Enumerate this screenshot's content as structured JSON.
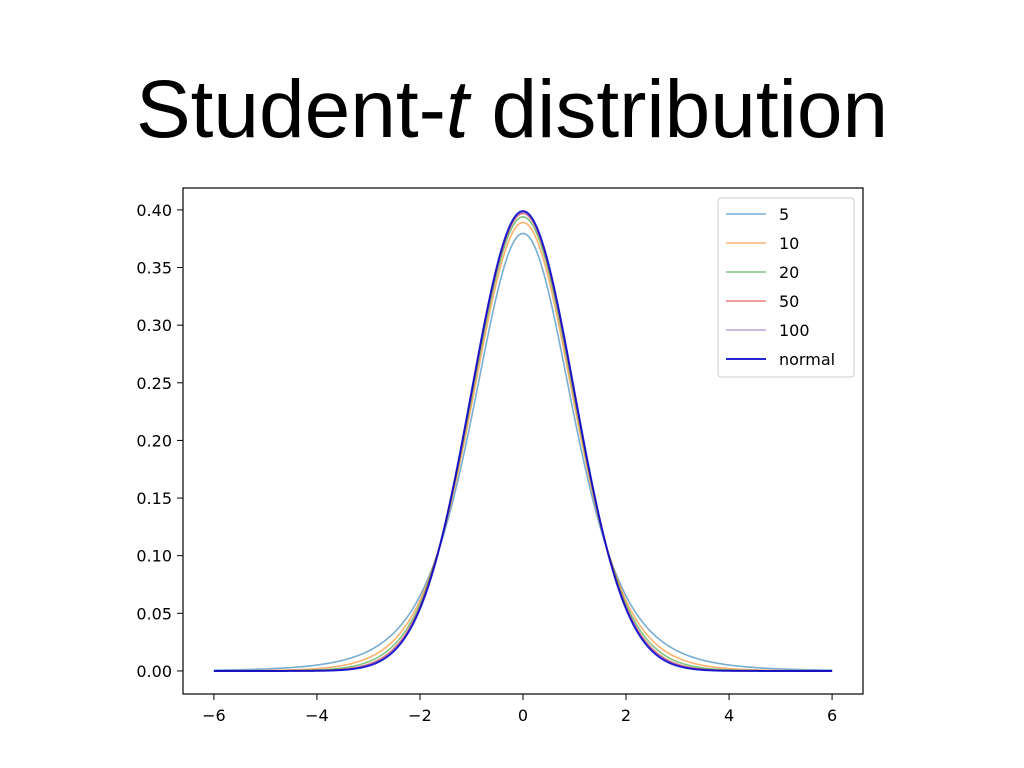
{
  "slide": {
    "title_prefix": "Student-",
    "title_italic": "t",
    "title_suffix": " distribution"
  },
  "chart_data": {
    "type": "line",
    "title": "",
    "xlabel": "",
    "ylabel": "",
    "xlim": [
      -6.6,
      6.6
    ],
    "ylim": [
      -0.02,
      0.419
    ],
    "x_ticks": [
      -6,
      -4,
      -2,
      0,
      2,
      4,
      6
    ],
    "x_tick_labels": [
      "−6",
      "−4",
      "−2",
      "0",
      "2",
      "4",
      "6"
    ],
    "y_ticks": [
      0.0,
      0.05,
      0.1,
      0.15,
      0.2,
      0.25,
      0.3,
      0.35,
      0.4
    ],
    "y_tick_labels": [
      "0.00",
      "0.05",
      "0.10",
      "0.15",
      "0.20",
      "0.25",
      "0.30",
      "0.35",
      "0.40"
    ],
    "grid": false,
    "legend_position": "upper-right",
    "x_range": [
      -6,
      6
    ],
    "series": [
      {
        "name": "5",
        "dof": 5,
        "color": "#1f77b4",
        "opacity": 0.6,
        "peak": 0.38
      },
      {
        "name": "10",
        "dof": 10,
        "color": "#ff7f0e",
        "opacity": 0.6,
        "peak": 0.389
      },
      {
        "name": "20",
        "dof": 20,
        "color": "#2ca02c",
        "opacity": 0.6,
        "peak": 0.394
      },
      {
        "name": "50",
        "dof": 50,
        "color": "#d62728",
        "opacity": 0.6,
        "peak": 0.397
      },
      {
        "name": "100",
        "dof": 100,
        "color": "#9467bd",
        "opacity": 0.6,
        "peak": 0.398
      },
      {
        "name": "normal",
        "dof": null,
        "color": "#0000cc",
        "opacity": 0.85,
        "peak": 0.399
      }
    ]
  }
}
